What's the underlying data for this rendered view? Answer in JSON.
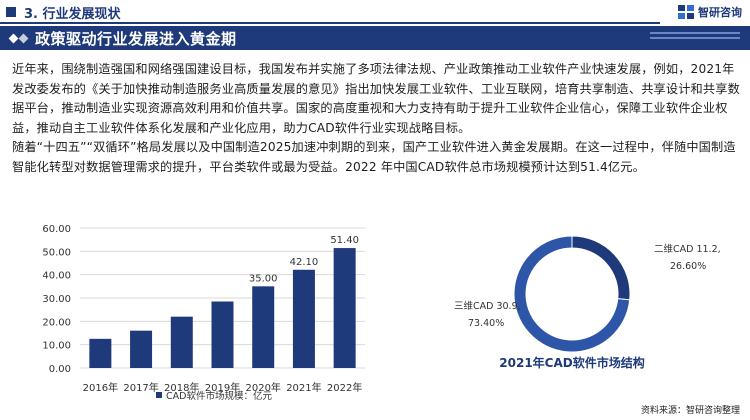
{
  "header": {
    "section": "3. 行业发展现状",
    "brand": "智研咨询",
    "title": "政策驱动行业发展进入黄金期"
  },
  "body": {
    "paragraphs": [
      "近年来，围绕制造强国和网络强国建设目标，我国发布并实施了多项法律法规、产业政策推动工业软件产业快速发展，例如，2021年发改委发布的《关于加快推动制造服务业高质量发展的意见》指出加快发展工业软件、工业互联网，培育共享制造、共享设计和共享数据平台，推动制造业实现资源高效利用和价值共享。国家的高度重视和大力支持有助于提升工业软件企业信心，保障工业软件企业权益，推动自主工业软件体系化发展和产业化应用，助力CAD软件行业实现战略目标。",
      "随着“十四五”“双循环”格局发展以及中国制造2025加速冲刺期的到来，国产工业软件进入黄金发展期。在这一过程中，伴随中国制造智能化转型对数据管理需求的提升，平台类软件或最为受益。2022 年中国CAD软件总市场规模预计达到51.4亿元。"
    ]
  },
  "chart_data": [
    {
      "type": "bar",
      "categories": [
        "2016年",
        "2017年",
        "2018年",
        "2019年",
        "2020年",
        "2021年",
        "2022年"
      ],
      "series": [
        {
          "name": "CAD软件市场规模：亿元",
          "values": [
            12.5,
            16.0,
            22.0,
            28.5,
            35.0,
            42.1,
            51.4
          ]
        }
      ],
      "data_labels": [
        "",
        "",
        "",
        "",
        "35.00",
        "42.10",
        "51.40"
      ],
      "yticks": [
        "0.00",
        "10.00",
        "20.00",
        "30.00",
        "40.00",
        "50.00",
        "60.00"
      ],
      "ylim": [
        0,
        60
      ],
      "grid": true,
      "legend": "bottom-center",
      "color": "#1f3a7a"
    },
    {
      "type": "pie",
      "title": "2021年CAD软件市场结构",
      "labels": [
        "二维CAD",
        "三维CAD"
      ],
      "values": [
        11.2,
        30.9
      ],
      "percents": [
        "26.60%",
        "73.40%"
      ],
      "data_labels": [
        {
          "line1": "二维CAD 11.2,",
          "line2": "26.60%"
        },
        {
          "line1": "三维CAD 30.9,",
          "line2": "73.40%"
        }
      ],
      "colors": [
        "#1f3a7a",
        "#2e56a8"
      ]
    }
  ],
  "footer": {
    "source": "资料来源：智研咨询整理"
  }
}
